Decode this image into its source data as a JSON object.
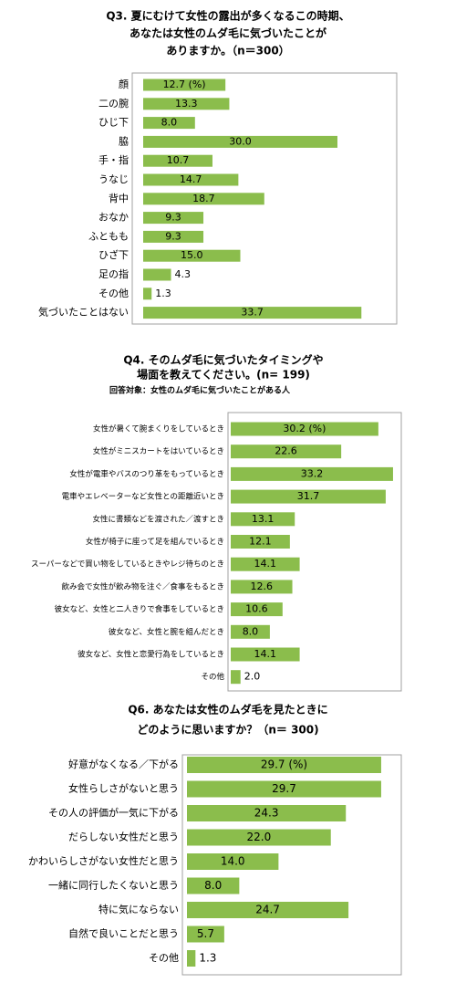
{
  "chart_data": [
    {
      "type": "bar",
      "title": [
        "Q3. 夏にむけて女性の露出が多くなるこの時期、",
        "あなたは女性のムダ毛に気づいたことが",
        "ありますか。（n＝300）"
      ],
      "categories": [
        "顔",
        "二の腕",
        "ひじ下",
        "脇",
        "手・指",
        "うなじ",
        "背中",
        "おなか",
        "ふともも",
        "ひざ下",
        "足の指",
        "その他",
        "気づいたことはない"
      ],
      "values": [
        12.7,
        13.3,
        8.0,
        30.0,
        10.7,
        14.7,
        18.7,
        9.3,
        9.3,
        15.0,
        4.3,
        1.3,
        33.7
      ],
      "value_labels": [
        "12.7 (%)",
        "13.3",
        "8.0",
        "30.0",
        "10.7",
        "14.7",
        "18.7",
        "9.3",
        "9.3",
        "15.0",
        "4.3",
        "1.3",
        "33.7"
      ],
      "color": "#8bbd4c"
    },
    {
      "type": "bar",
      "title": [
        "Q4. そのムダ毛に気づいたタイミングや",
        "場面を教えてください。(n= 199)"
      ],
      "subtitle": "回答対象：女性のムダ毛に気づいたことがある人",
      "categories": [
        "女性が暑くて腕まくりをしているとき",
        "女性がミニスカートをはいているとき",
        "女性が電車やバスのつり革をもっているとき",
        "電車やエレベーターなど女性との距離近いとき",
        "女性に書類などを渡された／渡すとき",
        "女性が椅子に座って足を組んでいるとき",
        "スーパーなどで買い物をしているときやレジ待ちのとき",
        "飲み会で女性が飲み物を注ぐ／食事をもるとき",
        "彼女など、女性と二人きりで食事をしているとき",
        "彼女など、女性と腕を組んだとき",
        "彼女など、女性と恋愛行為をしているとき",
        "その他"
      ],
      "values": [
        30.2,
        22.6,
        33.2,
        31.7,
        13.1,
        12.1,
        14.1,
        12.6,
        10.6,
        8.0,
        14.1,
        2.0
      ],
      "value_labels": [
        "30.2 (%)",
        "22.6",
        "33.2",
        "31.7",
        "13.1",
        "12.1",
        "14.1",
        "12.6",
        "10.6",
        "8.0",
        "14.1",
        "2.0"
      ],
      "color": "#8bbd4c"
    },
    {
      "type": "bar",
      "title": [
        "Q6. あなたは女性のムダ毛を見たときに",
        "どのように思いますか？（n＝ 300)"
      ],
      "categories": [
        "好意がなくなる／下がる",
        "女性らしさがないと思う",
        "その人の評価が一気に下がる",
        "だらしない女性だと思う",
        "かわいらしさがない女性だと思う",
        "一緒に同行したくないと思う",
        "特に気にならない",
        "自然で良いことだと思う",
        "その他"
      ],
      "values": [
        29.7,
        29.7,
        24.3,
        22.0,
        14.0,
        8.0,
        24.7,
        5.7,
        1.3
      ],
      "value_labels": [
        "29.7 (%)",
        "29.7",
        "24.3",
        "22.0",
        "14.0",
        "8.0",
        "24.7",
        "5.7",
        "1.3"
      ],
      "color": "#8bbd4c"
    }
  ]
}
